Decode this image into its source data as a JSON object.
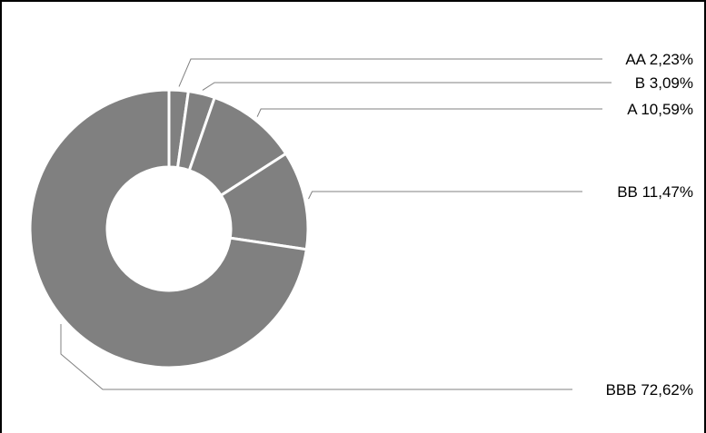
{
  "chart_data": {
    "type": "pie",
    "variant": "donut",
    "slice_color": "#808080",
    "separator_color": "#ffffff",
    "leader_color": "#808080",
    "slices": [
      {
        "category": "AA",
        "value": 2.23,
        "label": "AA 2,23%"
      },
      {
        "category": "B",
        "value": 3.09,
        "label": "B 3,09%"
      },
      {
        "category": "A",
        "value": 10.59,
        "label": "A 10,59%"
      },
      {
        "category": "BB",
        "value": 11.47,
        "label": "BB 11,47%"
      },
      {
        "category": "BBB",
        "value": 72.62,
        "label": "BBB 72,62%"
      }
    ]
  }
}
